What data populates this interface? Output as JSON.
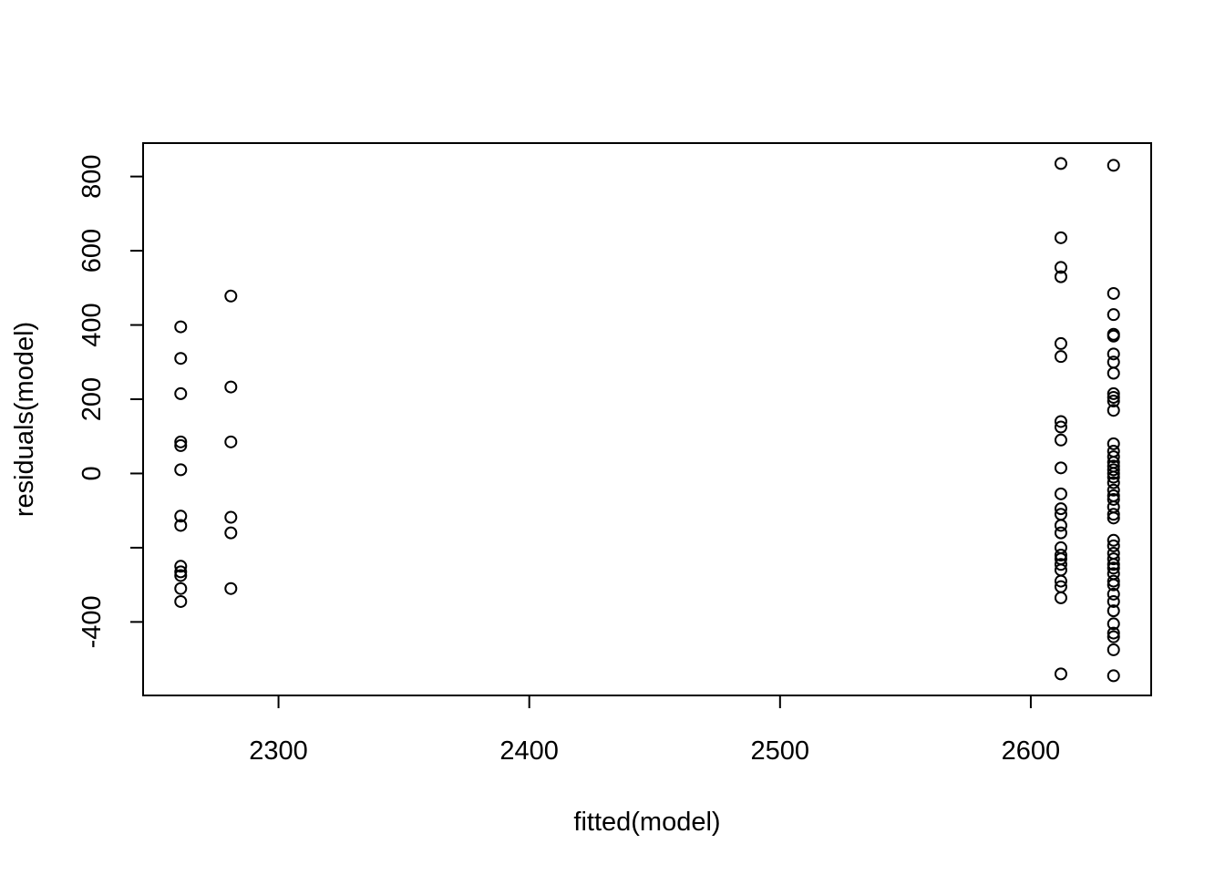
{
  "chart_data": {
    "type": "scatter",
    "title": "",
    "xlabel": "fitted(model)",
    "ylabel": "residuals(model)",
    "xlim": [
      2246,
      2648
    ],
    "ylim": [
      -598,
      890
    ],
    "x_ticks": [
      2300,
      2400,
      2500,
      2600
    ],
    "x_tick_labels": [
      "2300",
      "2400",
      "2500",
      "2600"
    ],
    "y_ticks": [
      -400,
      -200,
      0,
      200,
      400,
      600,
      800
    ],
    "y_tick_labels": [
      "-400",
      "",
      "0",
      "200",
      "400",
      "600",
      "800"
    ],
    "grid": false,
    "legend": "none",
    "marker": "open-circle",
    "point_color": "#000000",
    "groups": [
      {
        "x": 2261,
        "y": [
          395,
          310,
          215,
          85,
          75,
          10,
          -115,
          -140,
          -250,
          -265,
          -275,
          -310,
          -345
        ]
      },
      {
        "x": 2281,
        "y": [
          478,
          233,
          85,
          -118,
          -160,
          -310
        ]
      },
      {
        "x": 2612,
        "y": [
          835,
          635,
          555,
          530,
          350,
          315,
          140,
          125,
          90,
          15,
          -55,
          -95,
          -110,
          -140,
          -160,
          -200,
          -220,
          -230,
          -245,
          -260,
          -290,
          -305,
          -335,
          -540
        ]
      },
      {
        "x": 2633,
        "y": [
          830,
          485,
          428,
          375,
          370,
          322,
          300,
          270,
          215,
          205,
          195,
          170,
          80,
          60,
          45,
          30,
          20,
          10,
          0,
          -10,
          -25,
          -45,
          -60,
          -70,
          -90,
          -110,
          -120,
          -180,
          -195,
          -215,
          -230,
          -245,
          -255,
          -270,
          -290,
          -300,
          -325,
          -345,
          -370,
          -405,
          -430,
          -440,
          -475,
          -545
        ]
      }
    ]
  }
}
